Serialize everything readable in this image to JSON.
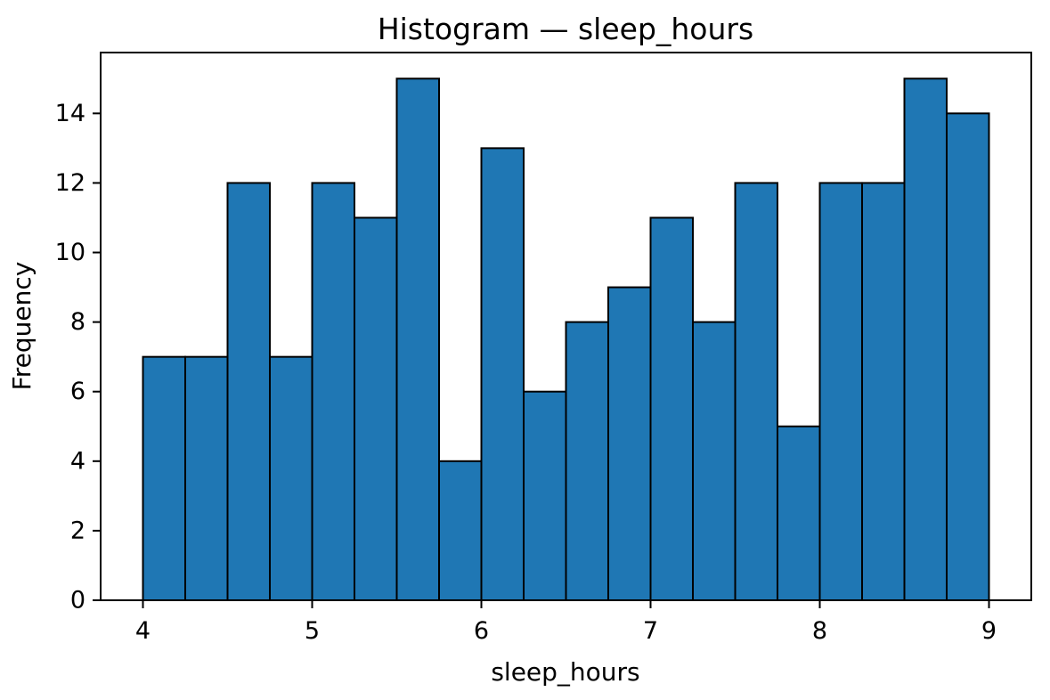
{
  "figure": {
    "title": "Histogram — sleep_hours",
    "xlabel": "sleep_hours",
    "ylabel": "Frequency"
  },
  "chart_data": {
    "type": "bar",
    "subtype": "histogram",
    "title": "Histogram — sleep_hours",
    "xlabel": "sleep_hours",
    "ylabel": "Frequency",
    "bin_start": 4.0,
    "bin_width": 0.25,
    "bin_edges": [
      4.0,
      4.25,
      4.5,
      4.75,
      5.0,
      5.25,
      5.5,
      5.75,
      6.0,
      6.25,
      6.5,
      6.75,
      7.0,
      7.25,
      7.5,
      7.75,
      8.0,
      8.25,
      8.5,
      8.75,
      9.0
    ],
    "values": [
      7,
      7,
      12,
      7,
      12,
      11,
      15,
      4,
      13,
      6,
      8,
      9,
      11,
      8,
      12,
      5,
      12,
      12,
      15,
      14
    ],
    "x_ticks": [
      4,
      5,
      6,
      7,
      8,
      9
    ],
    "y_ticks": [
      0,
      2,
      4,
      6,
      8,
      10,
      12,
      14
    ],
    "xlim": [
      3.75,
      9.25
    ],
    "ylim": [
      0,
      15.75
    ],
    "grid": false,
    "legend_position": "none",
    "bar_color": "#1f77b4",
    "bar_edge_color": "#000000",
    "axis_color": "#000000",
    "background_color": "#ffffff"
  }
}
